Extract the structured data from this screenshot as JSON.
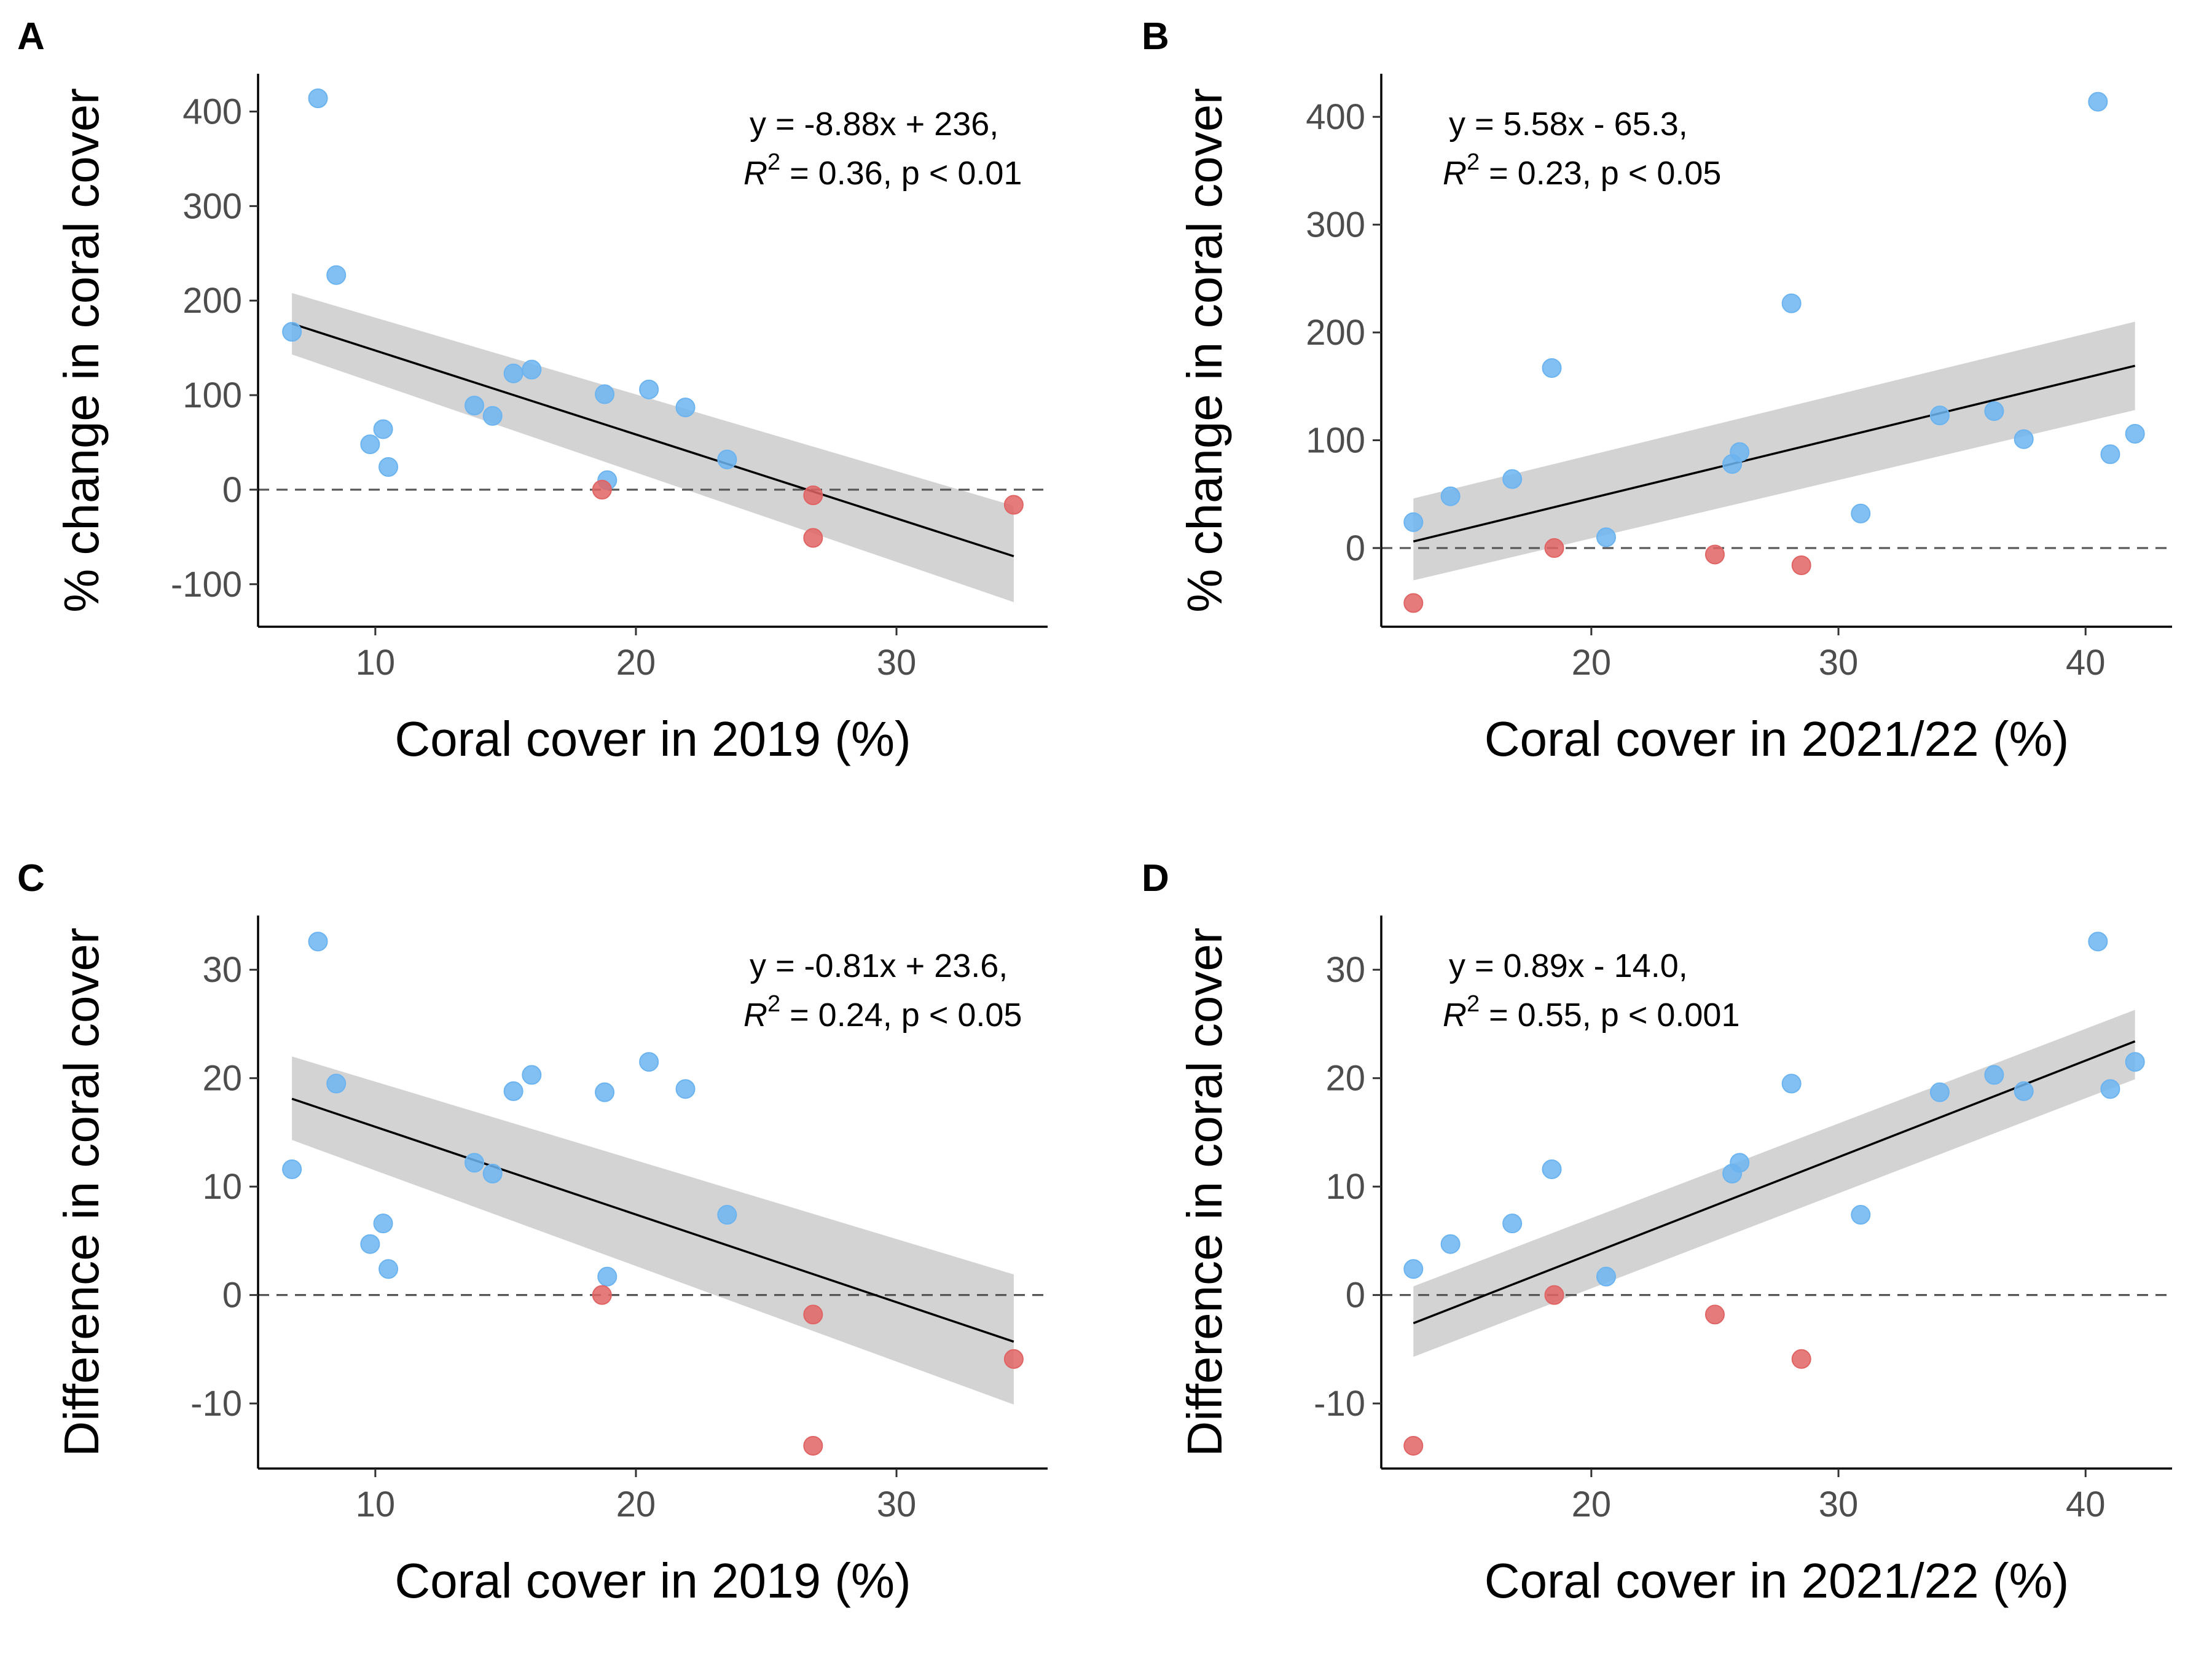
{
  "colors": {
    "increase": "#6cb4f0",
    "decrease": "#e06464",
    "band": "#d3d3d3"
  },
  "chart_data": [
    {
      "type": "scatter",
      "panel": "A",
      "xlabel": "Coral cover in 2019 (%)",
      "ylabel": "% change in coral cover",
      "xlim": [
        5.5,
        35.8
      ],
      "ylim": [
        -145,
        440
      ],
      "xticks": [
        10,
        20,
        30
      ],
      "yticks": [
        -100,
        0,
        100,
        200,
        300,
        400
      ],
      "annotation": {
        "line1": "y = -8.88x + 236,",
        "r2_label": "R",
        "r2_sup": "2",
        "r2_rest": " = 0.36, p < 0.01"
      },
      "fit": {
        "x": [
          6.8,
          34.5
        ],
        "y": [
          175.6,
          -70.4
        ],
        "ci_upper": [
          208,
          -17
        ],
        "ci_lower": [
          143,
          -119
        ]
      },
      "series": [
        {
          "name": "increase",
          "color": "#6cb4f0",
          "x": [
            6.8,
            7.8,
            8.5,
            9.8,
            10.3,
            10.5,
            13.8,
            14.5,
            15.3,
            16.0,
            18.8,
            18.9,
            20.5,
            21.9,
            23.5
          ],
          "y": [
            167,
            414,
            227,
            48,
            64,
            24,
            89,
            78,
            123,
            127,
            101,
            10,
            106,
            87,
            32
          ]
        },
        {
          "name": "decrease",
          "color": "#e06464",
          "x": [
            18.7,
            26.8,
            26.8,
            34.5
          ],
          "y": [
            0,
            -6,
            -51,
            -16
          ]
        }
      ]
    },
    {
      "type": "scatter",
      "panel": "B",
      "xlabel": "Coral cover in 2021/22 (%)",
      "ylabel": "% change in coral cover",
      "xlim": [
        11.5,
        43.5
      ],
      "ylim": [
        -73,
        440
      ],
      "xticks": [
        20,
        30,
        40
      ],
      "yticks": [
        0,
        100,
        200,
        300,
        400
      ],
      "annotation": {
        "line1": "y = 5.58x - 65.3,",
        "r2_label": "R",
        "r2_sup": "2",
        "r2_rest": " = 0.23, p < 0.05"
      },
      "fit": {
        "x": [
          12.8,
          42.0
        ],
        "y": [
          6.1,
          169.1
        ],
        "ci_upper": [
          46,
          210
        ],
        "ci_lower": [
          -30,
          128
        ]
      },
      "series": [
        {
          "name": "increase",
          "color": "#6cb4f0",
          "x": [
            12.8,
            14.3,
            16.8,
            18.4,
            20.6,
            25.7,
            26.0,
            28.1,
            30.9,
            34.1,
            36.3,
            37.5,
            40.5,
            41.0,
            42.0
          ],
          "y": [
            24,
            48,
            64,
            167,
            10,
            78,
            89,
            227,
            32,
            123,
            127,
            101,
            414,
            87,
            106
          ]
        },
        {
          "name": "decrease",
          "color": "#e06464",
          "x": [
            12.8,
            18.5,
            25.0,
            28.5
          ],
          "y": [
            -51,
            0,
            -6,
            -16
          ]
        }
      ]
    },
    {
      "type": "scatter",
      "panel": "C",
      "xlabel": "Coral cover in 2019 (%)",
      "ylabel": "Difference in coral cover",
      "xlim": [
        5.5,
        35.8
      ],
      "ylim": [
        -16,
        35
      ],
      "xticks": [
        10,
        20,
        30
      ],
      "yticks": [
        -10,
        0,
        10,
        20,
        30
      ],
      "annotation": {
        "line1": "y = -0.81x + 23.6,",
        "r2_label": "R",
        "r2_sup": "2",
        "r2_rest": " = 0.24, p < 0.05"
      },
      "fit": {
        "x": [
          6.8,
          34.5
        ],
        "y": [
          18.1,
          -4.3
        ],
        "ci_upper": [
          22,
          1.9
        ],
        "ci_lower": [
          14.3,
          -10.1
        ]
      },
      "series": [
        {
          "name": "increase",
          "color": "#6cb4f0",
          "x": [
            6.8,
            7.8,
            8.5,
            9.8,
            10.3,
            10.5,
            13.8,
            14.5,
            15.3,
            16.0,
            18.8,
            18.9,
            20.5,
            21.9,
            23.5
          ],
          "y": [
            11.6,
            32.6,
            19.5,
            4.7,
            6.6,
            2.4,
            12.2,
            11.2,
            18.8,
            20.3,
            18.7,
            1.7,
            21.5,
            19.0,
            7.4
          ]
        },
        {
          "name": "decrease",
          "color": "#e06464",
          "x": [
            18.7,
            26.8,
            26.8,
            34.5
          ],
          "y": [
            0,
            -1.8,
            -13.9,
            -5.9
          ]
        }
      ]
    },
    {
      "type": "scatter",
      "panel": "D",
      "xlabel": "Coral cover in 2021/22 (%)",
      "ylabel": "Difference in coral cover",
      "xlim": [
        11.5,
        43.5
      ],
      "ylim": [
        -16,
        35
      ],
      "xticks": [
        20,
        30,
        40
      ],
      "yticks": [
        -10,
        0,
        10,
        20,
        30
      ],
      "annotation": {
        "line1": "y = 0.89x - 14.0,",
        "r2_label": "R",
        "r2_sup": "2",
        "r2_rest": " = 0.55, p < 0.001"
      },
      "fit": {
        "x": [
          12.8,
          42.0
        ],
        "y": [
          -2.6,
          23.4
        ],
        "ci_upper": [
          0.8,
          26.3
        ],
        "ci_lower": [
          -5.7,
          19.9
        ]
      },
      "series": [
        {
          "name": "increase",
          "color": "#6cb4f0",
          "x": [
            12.8,
            14.3,
            16.8,
            18.4,
            20.6,
            25.7,
            26.0,
            28.1,
            30.9,
            34.1,
            36.3,
            37.5,
            40.5,
            41.0,
            42.0
          ],
          "y": [
            2.4,
            4.7,
            6.6,
            11.6,
            1.7,
            11.2,
            12.2,
            19.5,
            7.4,
            18.7,
            20.3,
            18.8,
            32.6,
            19.0,
            21.5
          ]
        },
        {
          "name": "decrease",
          "color": "#e06464",
          "x": [
            12.8,
            18.5,
            25.0,
            28.5
          ],
          "y": [
            -13.9,
            0,
            -1.8,
            -5.9
          ]
        }
      ]
    }
  ]
}
